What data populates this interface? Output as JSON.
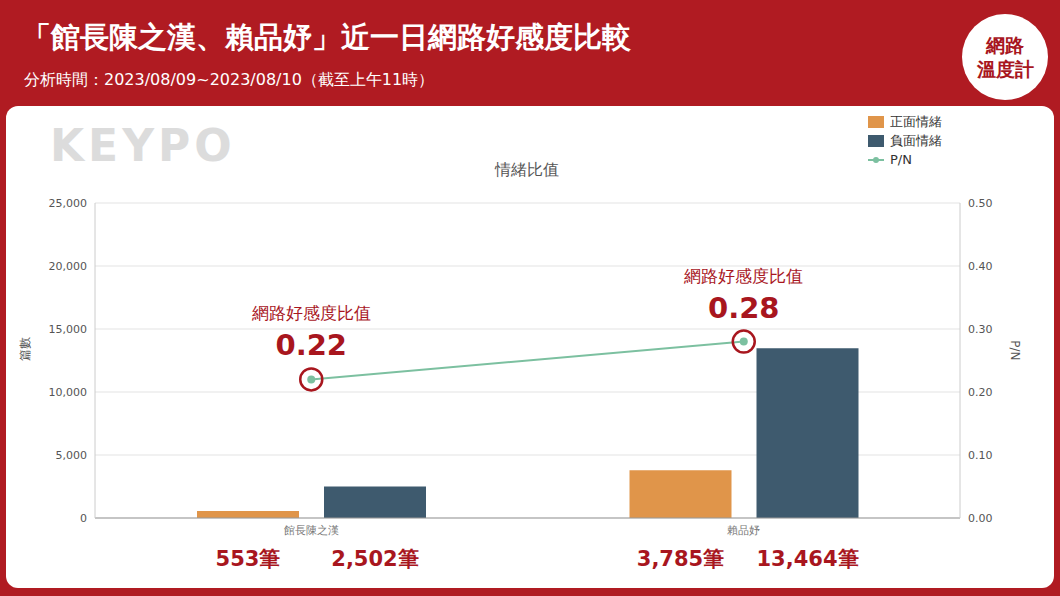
{
  "chart_data": {
    "type": "bar",
    "title": "「館長陳之漢、賴品妤」近一日網路好感度比較",
    "subtitle": "分析時間：2023/08/09~2023/08/10（截至上午11時）",
    "badge": [
      "網路",
      "溫度計"
    ],
    "watermark": "KEYPO",
    "chart_title": "情緒比值",
    "y_label": "篇數",
    "y2_label": "P/N",
    "categories": [
      "館長陳之漢",
      "賴品妤"
    ],
    "series": [
      {
        "name": "正面情緒",
        "type": "bar",
        "color": "#E0954A",
        "values": [
          553,
          3785
        ],
        "value_labels": [
          "553筆",
          "3,785筆"
        ]
      },
      {
        "name": "負面情緒",
        "type": "bar",
        "color": "#3E5A6E",
        "values": [
          2502,
          13464
        ],
        "value_labels": [
          "2,502筆",
          "13,464筆"
        ]
      },
      {
        "name": "P/N",
        "type": "line",
        "axis": "y2",
        "color": "#7CC0A0",
        "marker": "circle",
        "values": [
          0.22,
          0.28
        ],
        "value_labels": [
          "0.22",
          "0.28"
        ],
        "annotations": [
          "網路好感度比值",
          "網路好感度比值"
        ]
      }
    ],
    "ylim": [
      0,
      25000
    ],
    "yticks": [
      0,
      {
        "value": 5000,
        "label": "5,000"
      },
      {
        "value": 10000,
        "label": "10,000"
      },
      {
        "value": 15000,
        "label": "15,000"
      },
      {
        "value": 20000,
        "label": "20,000"
      },
      {
        "value": 25000,
        "label": "25,000"
      }
    ],
    "y2lim": [
      0,
      0.5
    ],
    "y2ticks": [
      {
        "value": 0,
        "label": "0.00"
      },
      {
        "value": 0.1,
        "label": "0.10"
      },
      {
        "value": 0.2,
        "label": "0.20"
      },
      {
        "value": 0.3,
        "label": "0.30"
      },
      {
        "value": 0.4,
        "label": "0.40"
      },
      {
        "value": 0.5,
        "label": "0.50"
      }
    ],
    "grid": true,
    "legend": "top-right",
    "data_labels": true
  }
}
